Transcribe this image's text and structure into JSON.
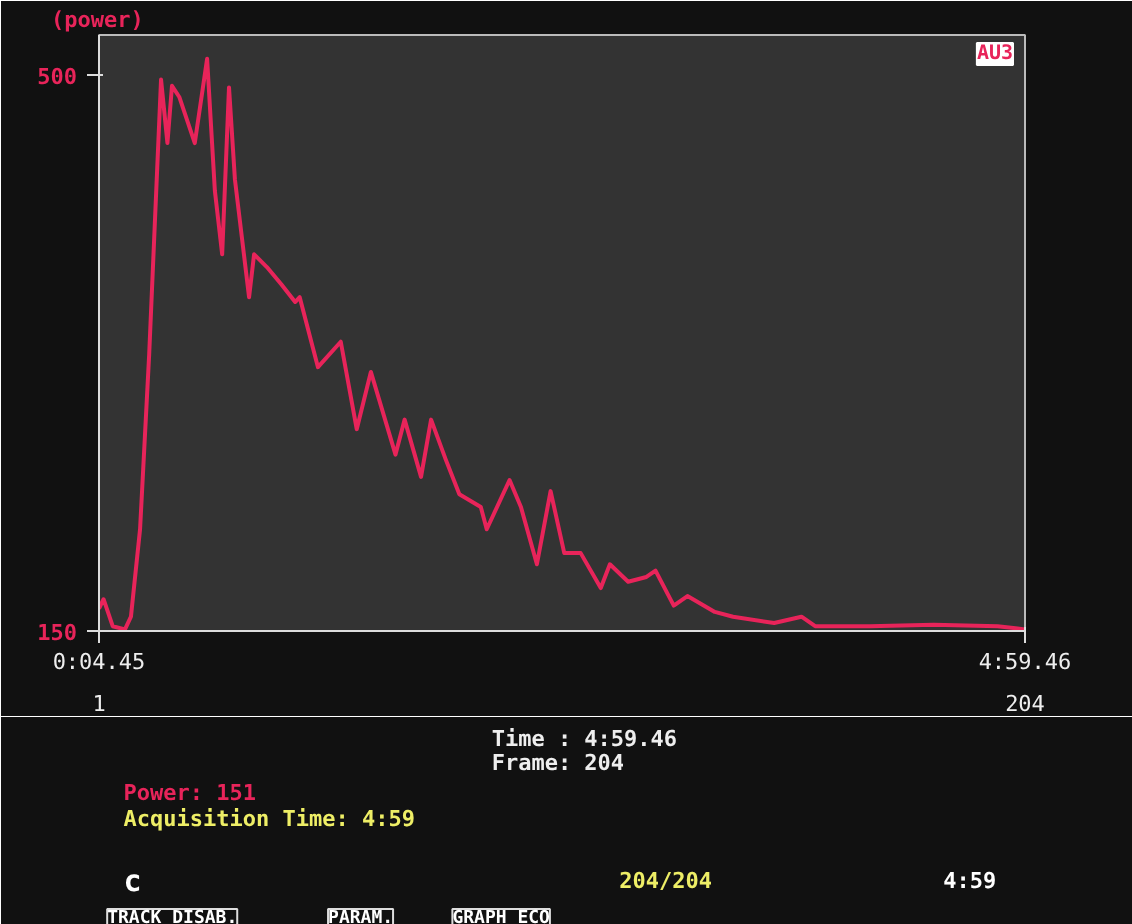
{
  "chart_data": {
    "type": "line",
    "ylabel": "(power)",
    "x": [
      1,
      2,
      4,
      6.7,
      8,
      10,
      12,
      14.6,
      16,
      17,
      18.6,
      22,
      24.7,
      26.4,
      28,
      29.5,
      30.8,
      33.9,
      35,
      37.8,
      41,
      44,
      45,
      48,
      49,
      54,
      57.5,
      60.6,
      66,
      68,
      71.6,
      73.8,
      77,
      80,
      84.7,
      86,
      91,
      93.5,
      97,
      100,
      103,
      106.6,
      111,
      113,
      117,
      121,
      123,
      127,
      130,
      136,
      140,
      149,
      155,
      158,
      170,
      184,
      198,
      204
    ],
    "series": [
      {
        "color": "#e8245a",
        "values": [
          164,
          170,
          153,
          151,
          159,
          214,
          324,
          497,
          457,
          493,
          486,
          457,
          510,
          427,
          387,
          492,
          434,
          360,
          387,
          379,
          368,
          357,
          360,
          327,
          316,
          332,
          277,
          313,
          261,
          283,
          247,
          283,
          258,
          236,
          228,
          214,
          245,
          228,
          192,
          238,
          199,
          199,
          177,
          192,
          181,
          184,
          188,
          166,
          172,
          162,
          159,
          155,
          159,
          153,
          153,
          154,
          153,
          151
        ]
      }
    ],
    "xlim": [
      1,
      204
    ],
    "ylim": [
      150,
      525
    ],
    "xticks": [
      1,
      204
    ],
    "yticks": [
      150,
      500
    ],
    "grid": false,
    "marker": "none",
    "line_style": "solid",
    "annotations": [
      "0:04.45",
      "4:59.46",
      "Time : 4:59.46",
      "Frame:  204",
      "Power:  151",
      "Acquisition Time: 4:59",
      "AU3",
      "c",
      "204/204",
      "4:59",
      "TRACK DISAB.",
      "PARAM.",
      "GRAPH ECO"
    ]
  }
}
